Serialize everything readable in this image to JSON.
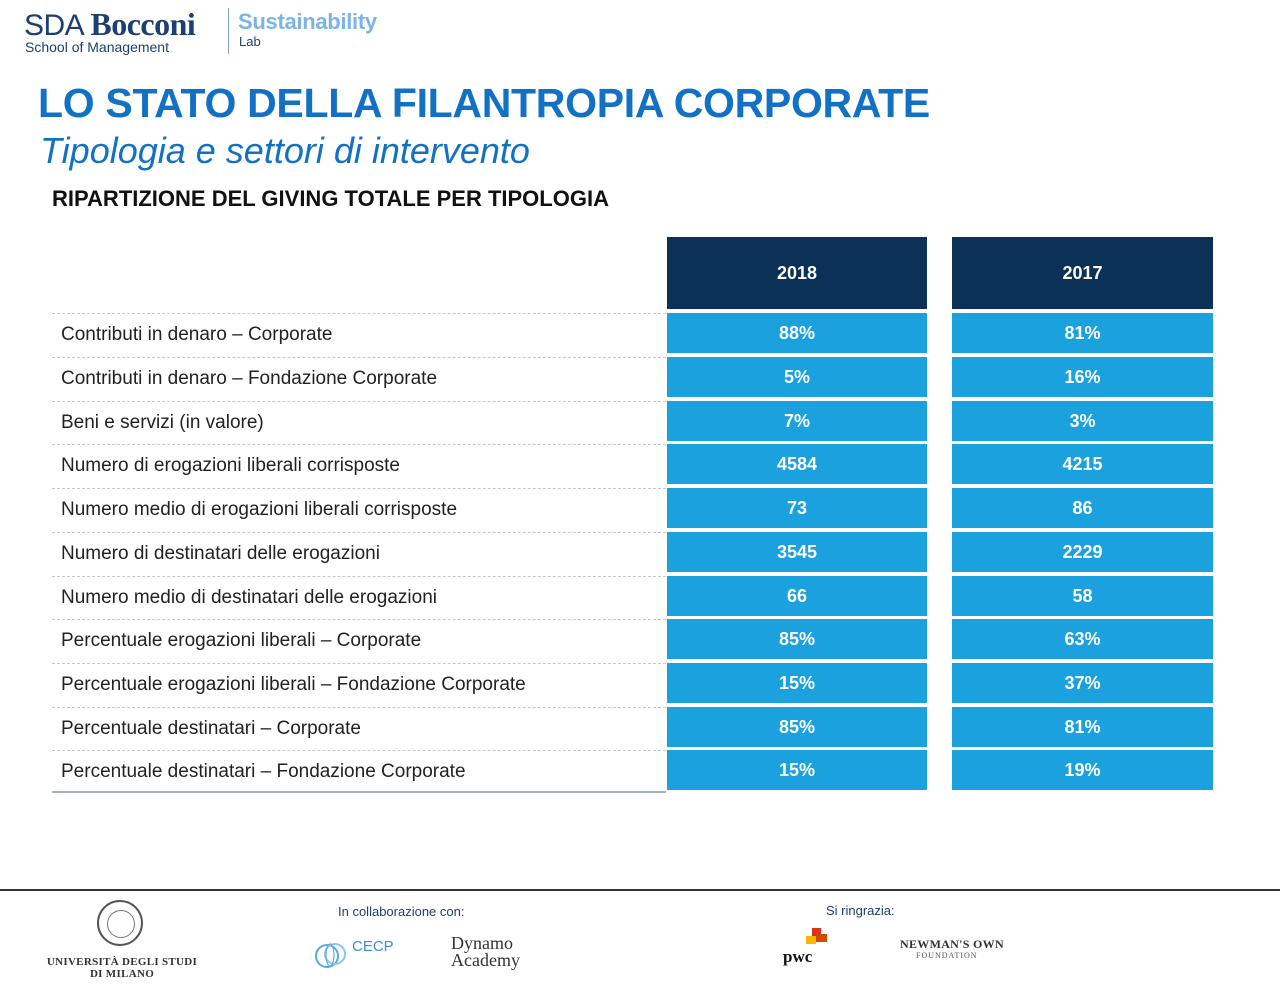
{
  "header": {
    "logo_sda": "SDA",
    "logo_bocconi": "Bocconi",
    "logo_school": "School of Management",
    "logo_sustainability": "Sustainability",
    "logo_lab": "Lab"
  },
  "title": "LO STATO DELLA FILANTROPIA CORPORATE",
  "subtitle": "Tipologia e settori di intervento",
  "section_title": "RIPARTIZIONE DEL GIVING TOTALE PER TIPOLOGIA",
  "table": {
    "columns": [
      "2018",
      "2017"
    ],
    "rows": [
      {
        "label": "Contributi in denaro – Corporate",
        "v2018": "88%",
        "v2017": "81%"
      },
      {
        "label": "Contributi in denaro – Fondazione Corporate",
        "v2018": "5%",
        "v2017": "16%"
      },
      {
        "label": "Beni e servizi (in valore)",
        "v2018": "7%",
        "v2017": "3%"
      },
      {
        "label": "Numero di erogazioni liberali corrisposte",
        "v2018": "4584",
        "v2017": "4215"
      },
      {
        "label": "Numero medio di erogazioni liberali corrisposte",
        "v2018": "73",
        "v2017": "86"
      },
      {
        "label": "Numero di destinatari delle erogazioni",
        "v2018": "3545",
        "v2017": "2229"
      },
      {
        "label": "Numero medio di destinatari delle erogazioni",
        "v2018": "66",
        "v2017": "58"
      },
      {
        "label": "Percentuale erogazioni liberali – Corporate",
        "v2018": "85%",
        "v2017": "63%"
      },
      {
        "label": "Percentuale erogazioni liberali – Fondazione Corporate",
        "v2018": "15%",
        "v2017": "37%"
      },
      {
        "label": "Percentuale destinatari – Corporate",
        "v2018": "85%",
        "v2017": "81%"
      },
      {
        "label": "Percentuale destinatari – Fondazione Corporate",
        "v2018": "15%",
        "v2017": "19%"
      }
    ]
  },
  "footer": {
    "unimi_line1": "UNIVERSITÀ DEGLI STUDI",
    "unimi_line2": "DI MILANO",
    "collab_label": "In collaborazione con:",
    "cecp": "CECP",
    "dynamo_line1": "Dynamo",
    "dynamo_line2": "Academy",
    "thanks_label": "Si ringrazia:",
    "pwc": "pwc",
    "newmans": "NEWMAN'S OWN",
    "newmans_sub": "FOUNDATION"
  },
  "colors": {
    "title_blue": "#1271c4",
    "header_navy": "#0b3156",
    "cell_blue": "#1aa1de"
  }
}
